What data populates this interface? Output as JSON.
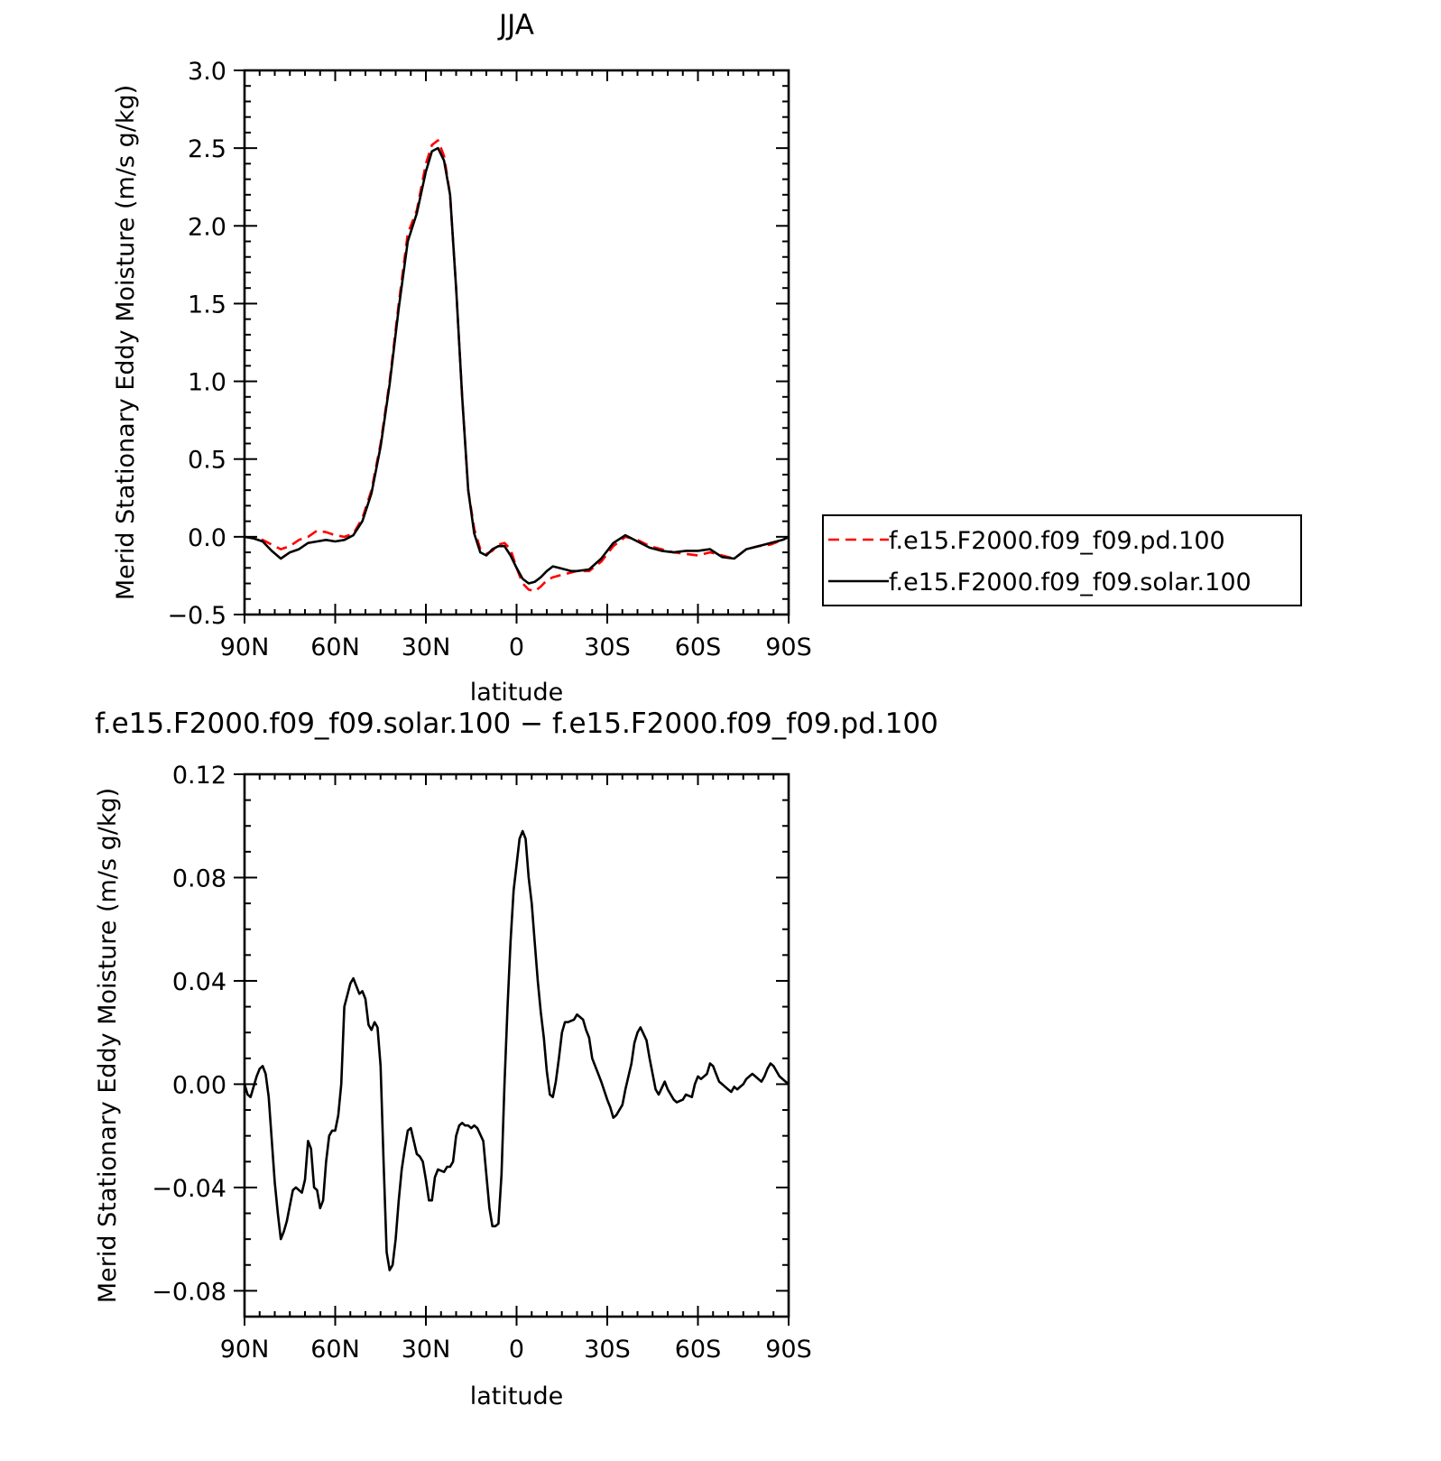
{
  "chart_data": [
    {
      "type": "line",
      "title": "JJA",
      "xlabel": "latitude",
      "ylabel": "Merid Stationary Eddy Moisture (m/s g/kg)",
      "xlim": [
        90,
        -90
      ],
      "ylim": [
        -0.5,
        3.0
      ],
      "x_ticks": [
        {
          "value": 90,
          "label": "90N"
        },
        {
          "value": 60,
          "label": "60N"
        },
        {
          "value": 30,
          "label": "30N"
        },
        {
          "value": 0,
          "label": "0"
        },
        {
          "value": -30,
          "label": "30S"
        },
        {
          "value": -60,
          "label": "60S"
        },
        {
          "value": -90,
          "label": "90S"
        }
      ],
      "y_ticks": [
        {
          "value": 3.0,
          "label": "3.0"
        },
        {
          "value": 2.5,
          "label": "2.5"
        },
        {
          "value": 2.0,
          "label": "2.0"
        },
        {
          "value": 1.5,
          "label": "1.5"
        },
        {
          "value": 1.0,
          "label": "1.0"
        },
        {
          "value": 0.5,
          "label": "0.5"
        },
        {
          "value": 0.0,
          "label": "0.0"
        },
        {
          "value": -0.5,
          "label": "−0.5"
        }
      ],
      "grid": false,
      "legend_position": "right",
      "series": [
        {
          "name": "f.e15.F2000.f09_f09.pd.100",
          "color": "#ff0000",
          "style": "dashed",
          "x": [
            90,
            87,
            84,
            81,
            78,
            75,
            72,
            69,
            66,
            63,
            60,
            57,
            54,
            51,
            48,
            45,
            42,
            39,
            36,
            33,
            30,
            28,
            26,
            24,
            22,
            20,
            18,
            16,
            14,
            12,
            10,
            8,
            6,
            4,
            2,
            0,
            -2,
            -4,
            -6,
            -8,
            -10,
            -12,
            -14,
            -16,
            -18,
            -20,
            -24,
            -28,
            -32,
            -36,
            -40,
            -44,
            -48,
            -52,
            -56,
            -60,
            -64,
            -68,
            -72,
            -76,
            -80,
            -84,
            -88,
            -90
          ],
          "y": [
            0.0,
            -0.01,
            -0.02,
            -0.05,
            -0.08,
            -0.06,
            -0.02,
            0.0,
            0.04,
            0.03,
            0.01,
            0.0,
            0.02,
            0.12,
            0.3,
            0.6,
            1.0,
            1.5,
            1.95,
            2.1,
            2.4,
            2.52,
            2.55,
            2.45,
            2.2,
            1.6,
            0.9,
            0.3,
            0.05,
            -0.08,
            -0.11,
            -0.09,
            -0.05,
            -0.04,
            -0.08,
            -0.2,
            -0.3,
            -0.34,
            -0.35,
            -0.32,
            -0.28,
            -0.26,
            -0.25,
            -0.24,
            -0.23,
            -0.22,
            -0.22,
            -0.16,
            -0.06,
            0.0,
            -0.02,
            -0.06,
            -0.08,
            -0.1,
            -0.11,
            -0.12,
            -0.1,
            -0.12,
            -0.14,
            -0.08,
            -0.06,
            -0.05,
            -0.02,
            0.0
          ]
        },
        {
          "name": "f.e15.F2000.f09_f09.solar.100",
          "color": "#000000",
          "style": "solid",
          "x": [
            90,
            87,
            84,
            81,
            78,
            75,
            72,
            69,
            66,
            63,
            60,
            57,
            54,
            51,
            48,
            45,
            42,
            39,
            36,
            33,
            30,
            28,
            26,
            24,
            22,
            20,
            18,
            16,
            14,
            12,
            10,
            8,
            6,
            4,
            2,
            0,
            -2,
            -4,
            -6,
            -8,
            -10,
            -12,
            -14,
            -16,
            -18,
            -20,
            -24,
            -28,
            -32,
            -36,
            -40,
            -44,
            -48,
            -52,
            -56,
            -60,
            -64,
            -68,
            -72,
            -76,
            -80,
            -84,
            -88,
            -90
          ],
          "y": [
            0.0,
            -0.01,
            -0.03,
            -0.09,
            -0.14,
            -0.1,
            -0.08,
            -0.04,
            -0.03,
            -0.02,
            -0.03,
            -0.02,
            0.01,
            0.1,
            0.28,
            0.58,
            0.98,
            1.47,
            1.9,
            2.08,
            2.35,
            2.48,
            2.5,
            2.42,
            2.2,
            1.6,
            0.9,
            0.3,
            0.02,
            -0.1,
            -0.12,
            -0.08,
            -0.06,
            -0.06,
            -0.12,
            -0.2,
            -0.27,
            -0.3,
            -0.29,
            -0.26,
            -0.22,
            -0.19,
            -0.2,
            -0.21,
            -0.22,
            -0.22,
            -0.21,
            -0.14,
            -0.04,
            0.01,
            -0.03,
            -0.07,
            -0.09,
            -0.1,
            -0.09,
            -0.09,
            -0.08,
            -0.13,
            -0.14,
            -0.08,
            -0.06,
            -0.04,
            -0.02,
            0.0
          ]
        }
      ]
    },
    {
      "type": "line",
      "title": "f.e15.F2000.f09_f09.solar.100 − f.e15.F2000.f09_f09.pd.100",
      "xlabel": "latitude",
      "ylabel": "Merid Stationary Eddy Moisture (m/s g/kg)",
      "xlim": [
        90,
        -90
      ],
      "ylim": [
        -0.09,
        0.12
      ],
      "x_ticks": [
        {
          "value": 90,
          "label": "90N"
        },
        {
          "value": 60,
          "label": "60N"
        },
        {
          "value": 30,
          "label": "30N"
        },
        {
          "value": 0,
          "label": "0"
        },
        {
          "value": -30,
          "label": "30S"
        },
        {
          "value": -60,
          "label": "60S"
        },
        {
          "value": -90,
          "label": "90S"
        }
      ],
      "y_ticks": [
        {
          "value": 0.12,
          "label": "0.12"
        },
        {
          "value": 0.08,
          "label": "0.08"
        },
        {
          "value": 0.04,
          "label": "0.04"
        },
        {
          "value": 0.0,
          "label": "0.00"
        },
        {
          "value": -0.04,
          "label": "−0.04"
        },
        {
          "value": -0.08,
          "label": "−0.08"
        }
      ],
      "grid": false,
      "series": [
        {
          "color": "#000000",
          "style": "solid",
          "x": [
            90,
            89,
            88,
            86,
            85,
            84,
            83,
            82,
            80,
            79,
            78,
            77,
            76,
            74,
            73,
            71,
            70,
            69,
            68,
            67,
            66,
            65,
            64,
            63,
            62,
            61,
            60,
            59,
            58,
            57,
            55,
            54,
            53,
            52,
            51,
            50,
            49,
            48,
            47,
            46,
            45,
            44,
            43,
            42,
            41,
            40,
            39,
            38,
            37,
            36,
            35,
            34,
            33,
            32,
            31,
            30,
            29,
            28,
            27,
            26,
            24,
            23,
            22,
            21,
            20,
            19,
            18,
            17,
            16,
            15,
            14,
            13,
            11,
            10,
            9,
            8,
            7,
            6,
            5,
            4,
            3,
            2,
            1,
            0,
            -1,
            -2,
            -3,
            -4,
            -5,
            -6,
            -7,
            -8,
            -9,
            -10,
            -11,
            -12,
            -13,
            -14,
            -15,
            -16,
            -17,
            -19,
            -20,
            -22,
            -23,
            -24,
            -25,
            -27,
            -28,
            -30,
            -31,
            -32,
            -33,
            -35,
            -36,
            -38,
            -39,
            -40,
            -41,
            -43,
            -44,
            -46,
            -47,
            -49,
            -50,
            -52,
            -53,
            -55,
            -56,
            -58,
            -59,
            -60,
            -61,
            -63,
            -64,
            -65,
            -66,
            -67,
            -68,
            -69,
            -70,
            -71,
            -72,
            -73,
            -74,
            -75,
            -76,
            -77,
            -78,
            -79,
            -80,
            -81,
            -82,
            -83,
            -84,
            -85,
            -86,
            -87,
            -88,
            -89,
            -90
          ],
          "y": [
            0.0,
            -0.004,
            -0.005,
            0.003,
            0.006,
            0.007,
            0.004,
            -0.005,
            -0.038,
            -0.05,
            -0.06,
            -0.057,
            -0.053,
            -0.041,
            -0.04,
            -0.042,
            -0.037,
            -0.022,
            -0.025,
            -0.04,
            -0.041,
            -0.048,
            -0.045,
            -0.03,
            -0.02,
            -0.018,
            -0.018,
            -0.012,
            0.0,
            0.03,
            0.039,
            0.041,
            0.038,
            0.035,
            0.036,
            0.033,
            0.023,
            0.021,
            0.024,
            0.022,
            0.007,
            -0.03,
            -0.065,
            -0.072,
            -0.07,
            -0.06,
            -0.045,
            -0.033,
            -0.025,
            -0.018,
            -0.017,
            -0.022,
            -0.027,
            -0.028,
            -0.03,
            -0.037,
            -0.045,
            -0.045,
            -0.036,
            -0.033,
            -0.034,
            -0.032,
            -0.032,
            -0.03,
            -0.02,
            -0.016,
            -0.015,
            -0.016,
            -0.016,
            -0.017,
            -0.016,
            -0.017,
            -0.022,
            -0.035,
            -0.048,
            -0.055,
            -0.055,
            -0.054,
            -0.035,
            0.0,
            0.03,
            0.055,
            0.075,
            0.085,
            0.095,
            0.098,
            0.095,
            0.08,
            0.07,
            0.055,
            0.04,
            0.028,
            0.018,
            0.005,
            -0.004,
            -0.005,
            0.001,
            0.01,
            0.02,
            0.024,
            0.024,
            0.025,
            0.027,
            0.025,
            0.021,
            0.018,
            0.01,
            0.004,
            0.001,
            -0.006,
            -0.009,
            -0.013,
            -0.012,
            -0.008,
            -0.002,
            0.008,
            0.016,
            0.02,
            0.022,
            0.017,
            0.01,
            -0.002,
            -0.004,
            0.001,
            -0.002,
            -0.006,
            -0.007,
            -0.006,
            -0.004,
            -0.005,
            0.0,
            0.003,
            0.002,
            0.004,
            0.008,
            0.007,
            0.004,
            0.001,
            0.0,
            -0.001,
            -0.002,
            -0.003,
            -0.001,
            -0.002,
            -0.001,
            0.0,
            0.002,
            0.003,
            0.004,
            0.003,
            0.002,
            0.001,
            0.003,
            0.006,
            0.008,
            0.007,
            0.005,
            0.003,
            0.002,
            0.001,
            0.0
          ]
        }
      ]
    }
  ]
}
